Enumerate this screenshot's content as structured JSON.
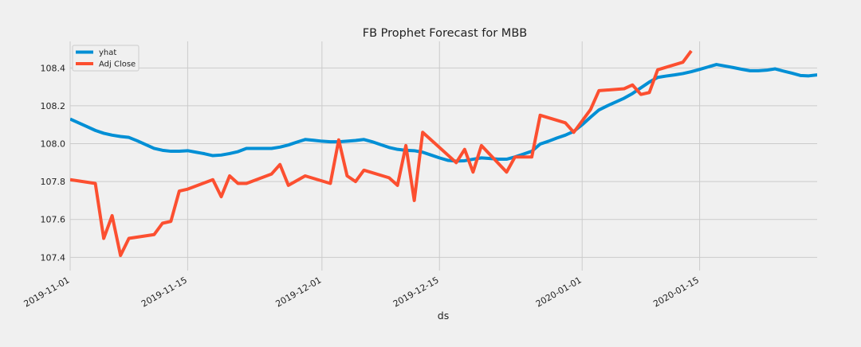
{
  "chart_data": {
    "type": "line",
    "title": "FB Prophet Forecast for MBB",
    "xlabel": "ds",
    "ylabel": "",
    "x_start": "2019-11-01",
    "x_end": "2020-01-29",
    "ylim": [
      107.33,
      108.54
    ],
    "grid": true,
    "legend_placement": "top-left",
    "x_ticks": [
      "2019-11-01",
      "2019-11-15",
      "2019-12-01",
      "2019-12-15",
      "2020-01-01",
      "2020-01-15"
    ],
    "y_ticks": [
      "107.4",
      "107.6",
      "107.8",
      "108.0",
      "108.2",
      "108.4"
    ],
    "colors": {
      "yhat": "#008fd5",
      "adj_close": "#fc4f30",
      "background": "#f0f0f0",
      "grid": "#cbcbcb"
    },
    "series": [
      {
        "name": "yhat",
        "points": [
          [
            "2019-11-01",
            108.13
          ],
          [
            "2019-11-02",
            108.11
          ],
          [
            "2019-11-03",
            108.09
          ],
          [
            "2019-11-04",
            108.07
          ],
          [
            "2019-11-05",
            108.055
          ],
          [
            "2019-11-06",
            108.045
          ],
          [
            "2019-11-07",
            108.038
          ],
          [
            "2019-11-08",
            108.033
          ],
          [
            "2019-11-09",
            108.015
          ],
          [
            "2019-11-10",
            107.995
          ],
          [
            "2019-11-11",
            107.975
          ],
          [
            "2019-11-12",
            107.965
          ],
          [
            "2019-11-13",
            107.96
          ],
          [
            "2019-11-14",
            107.96
          ],
          [
            "2019-11-15",
            107.963
          ],
          [
            "2019-11-16",
            107.955
          ],
          [
            "2019-11-17",
            107.947
          ],
          [
            "2019-11-18",
            107.937
          ],
          [
            "2019-11-19",
            107.94
          ],
          [
            "2019-11-20",
            107.948
          ],
          [
            "2019-11-21",
            107.958
          ],
          [
            "2019-11-22",
            107.975
          ],
          [
            "2019-11-23",
            107.975
          ],
          [
            "2019-11-24",
            107.975
          ],
          [
            "2019-11-25",
            107.975
          ],
          [
            "2019-11-26",
            107.982
          ],
          [
            "2019-11-27",
            107.993
          ],
          [
            "2019-11-28",
            108.008
          ],
          [
            "2019-11-29",
            108.022
          ],
          [
            "2019-11-30",
            108.018
          ],
          [
            "2019-12-01",
            108.013
          ],
          [
            "2019-12-02",
            108.01
          ],
          [
            "2019-12-03",
            108.01
          ],
          [
            "2019-12-04",
            108.013
          ],
          [
            "2019-12-05",
            108.017
          ],
          [
            "2019-12-06",
            108.022
          ],
          [
            "2019-12-07",
            108.01
          ],
          [
            "2019-12-08",
            107.995
          ],
          [
            "2019-12-09",
            107.98
          ],
          [
            "2019-12-10",
            107.97
          ],
          [
            "2019-12-11",
            107.965
          ],
          [
            "2019-12-12",
            107.963
          ],
          [
            "2019-12-13",
            107.955
          ],
          [
            "2019-12-14",
            107.94
          ],
          [
            "2019-12-15",
            107.925
          ],
          [
            "2019-12-16",
            107.912
          ],
          [
            "2019-12-17",
            107.908
          ],
          [
            "2019-12-18",
            107.91
          ],
          [
            "2019-12-19",
            107.918
          ],
          [
            "2019-12-20",
            107.925
          ],
          [
            "2019-12-21",
            107.922
          ],
          [
            "2019-12-22",
            107.918
          ],
          [
            "2019-12-23",
            107.918
          ],
          [
            "2019-12-24",
            107.93
          ],
          [
            "2019-12-25",
            107.945
          ],
          [
            "2019-12-26",
            107.96
          ],
          [
            "2019-12-27",
            107.998
          ],
          [
            "2019-12-28",
            108.013
          ],
          [
            "2019-12-29",
            108.03
          ],
          [
            "2019-12-30",
            108.045
          ],
          [
            "2019-12-31",
            108.065
          ],
          [
            "2020-01-01",
            108.1
          ],
          [
            "2020-01-02",
            108.14
          ],
          [
            "2020-01-03",
            108.178
          ],
          [
            "2020-01-04",
            108.2
          ],
          [
            "2020-01-05",
            108.22
          ],
          [
            "2020-01-06",
            108.24
          ],
          [
            "2020-01-07",
            108.265
          ],
          [
            "2020-01-08",
            108.295
          ],
          [
            "2020-01-09",
            108.325
          ],
          [
            "2020-01-10",
            108.35
          ],
          [
            "2020-01-11",
            108.357
          ],
          [
            "2020-01-12",
            108.363
          ],
          [
            "2020-01-13",
            108.37
          ],
          [
            "2020-01-14",
            108.38
          ],
          [
            "2020-01-15",
            108.392
          ],
          [
            "2020-01-16",
            108.405
          ],
          [
            "2020-01-17",
            108.418
          ],
          [
            "2020-01-18",
            108.41
          ],
          [
            "2020-01-19",
            108.402
          ],
          [
            "2020-01-20",
            108.393
          ],
          [
            "2020-01-21",
            108.385
          ],
          [
            "2020-01-22",
            108.385
          ],
          [
            "2020-01-23",
            108.388
          ],
          [
            "2020-01-24",
            108.395
          ],
          [
            "2020-01-25",
            108.383
          ],
          [
            "2020-01-26",
            108.372
          ],
          [
            "2020-01-27",
            108.36
          ],
          [
            "2020-01-28",
            108.358
          ],
          [
            "2020-01-29",
            108.363
          ],
          [
            "2020-01-30",
            108.372
          ]
        ]
      },
      {
        "name": "Adj Close",
        "points": [
          [
            "2019-11-01",
            107.81
          ],
          [
            "2019-11-04",
            107.79
          ],
          [
            "2019-11-05",
            107.5
          ],
          [
            "2019-11-06",
            107.62
          ],
          [
            "2019-11-07",
            107.41
          ],
          [
            "2019-11-08",
            107.5
          ],
          [
            "2019-11-11",
            107.52
          ],
          [
            "2019-11-12",
            107.58
          ],
          [
            "2019-11-13",
            107.59
          ],
          [
            "2019-11-14",
            107.75
          ],
          [
            "2019-11-15",
            107.76
          ],
          [
            "2019-11-18",
            107.81
          ],
          [
            "2019-11-19",
            107.72
          ],
          [
            "2019-11-20",
            107.83
          ],
          [
            "2019-11-21",
            107.79
          ],
          [
            "2019-11-22",
            107.79
          ],
          [
            "2019-11-25",
            107.84
          ],
          [
            "2019-11-26",
            107.89
          ],
          [
            "2019-11-27",
            107.78
          ],
          [
            "2019-11-29",
            107.83
          ],
          [
            "2019-12-02",
            107.79
          ],
          [
            "2019-12-03",
            108.02
          ],
          [
            "2019-12-04",
            107.83
          ],
          [
            "2019-12-05",
            107.8
          ],
          [
            "2019-12-06",
            107.86
          ],
          [
            "2019-12-09",
            107.82
          ],
          [
            "2019-12-10",
            107.78
          ],
          [
            "2019-12-11",
            107.99
          ],
          [
            "2019-12-12",
            107.7
          ],
          [
            "2019-12-13",
            108.06
          ],
          [
            "2019-12-16",
            107.94
          ],
          [
            "2019-12-17",
            107.9
          ],
          [
            "2019-12-18",
            107.97
          ],
          [
            "2019-12-19",
            107.85
          ],
          [
            "2019-12-20",
            107.99
          ],
          [
            "2019-12-23",
            107.85
          ],
          [
            "2019-12-24",
            107.93
          ],
          [
            "2019-12-26",
            107.93
          ],
          [
            "2019-12-27",
            108.15
          ],
          [
            "2019-12-30",
            108.11
          ],
          [
            "2019-12-31",
            108.06
          ],
          [
            "2020-01-02",
            108.18
          ],
          [
            "2020-01-03",
            108.28
          ],
          [
            "2020-01-06",
            108.29
          ],
          [
            "2020-01-07",
            108.31
          ],
          [
            "2020-01-08",
            108.26
          ],
          [
            "2020-01-09",
            108.27
          ],
          [
            "2020-01-10",
            108.39
          ],
          [
            "2020-01-13",
            108.43
          ],
          [
            "2020-01-14",
            108.49
          ]
        ]
      }
    ]
  }
}
